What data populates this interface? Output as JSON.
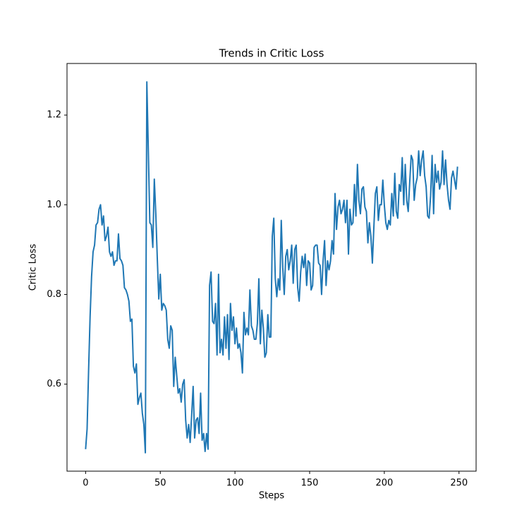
{
  "chart_data": {
    "type": "line",
    "title": "Trends in Critic Loss",
    "x_label": "Steps",
    "y_label": "Critic Loss",
    "color": "#1f77b4",
    "x": [
      0,
      1,
      2,
      3,
      4,
      5,
      6,
      7,
      8,
      9,
      10,
      11,
      12,
      13,
      14,
      15,
      16,
      17,
      18,
      19,
      20,
      21,
      22,
      23,
      24,
      25,
      26,
      27,
      28,
      29,
      30,
      31,
      32,
      33,
      34,
      35,
      36,
      37,
      38,
      39,
      40,
      41,
      42,
      43,
      44,
      45,
      46,
      47,
      48,
      49,
      50,
      51,
      52,
      53,
      54,
      55,
      56,
      57,
      58,
      59,
      60,
      61,
      62,
      63,
      64,
      65,
      66,
      67,
      68,
      69,
      70,
      71,
      72,
      73,
      74,
      75,
      76,
      77,
      78,
      79,
      80,
      81,
      82,
      83,
      84,
      85,
      86,
      87,
      88,
      89,
      90,
      91,
      92,
      93,
      94,
      95,
      96,
      97,
      98,
      99,
      100,
      101,
      102,
      103,
      104,
      105,
      106,
      107,
      108,
      109,
      110,
      111,
      112,
      113,
      114,
      115,
      116,
      117,
      118,
      119,
      120,
      121,
      122,
      123,
      124,
      125,
      126,
      127,
      128,
      129,
      130,
      131,
      132,
      133,
      134,
      135,
      136,
      137,
      138,
      139,
      140,
      141,
      142,
      143,
      144,
      145,
      146,
      147,
      148,
      149,
      150,
      151,
      152,
      153,
      154,
      155,
      156,
      157,
      158,
      159,
      160,
      161,
      162,
      163,
      164,
      165,
      166,
      167,
      168,
      169,
      170,
      171,
      172,
      173,
      174,
      175,
      176,
      177,
      178,
      179,
      180,
      181,
      182,
      183,
      184,
      185,
      186,
      187,
      188,
      189,
      190,
      191,
      192,
      193,
      194,
      195,
      196,
      197,
      198,
      199,
      200,
      201,
      202,
      203,
      204,
      205,
      206,
      207,
      208,
      209,
      210,
      211,
      212,
      213,
      214,
      215,
      216,
      217,
      218,
      219,
      220,
      221,
      222,
      223,
      224,
      225,
      226,
      227,
      228,
      229,
      230,
      231,
      232,
      233,
      234,
      235,
      236,
      237,
      238,
      239,
      240,
      241,
      242,
      243,
      244,
      245,
      246,
      247,
      248,
      249
    ],
    "values": [
      0.455,
      0.5,
      0.63,
      0.75,
      0.84,
      0.895,
      0.91,
      0.955,
      0.96,
      0.99,
      1.0,
      0.955,
      0.975,
      0.92,
      0.93,
      0.95,
      0.895,
      0.885,
      0.895,
      0.865,
      0.875,
      0.875,
      0.935,
      0.88,
      0.875,
      0.865,
      0.815,
      0.81,
      0.8,
      0.785,
      0.74,
      0.745,
      0.64,
      0.625,
      0.645,
      0.555,
      0.57,
      0.58,
      0.535,
      0.51,
      0.447,
      1.274,
      1.12,
      0.96,
      0.955,
      0.905,
      1.057,
      0.98,
      0.88,
      0.79,
      0.845,
      0.765,
      0.78,
      0.775,
      0.765,
      0.7,
      0.68,
      0.73,
      0.72,
      0.595,
      0.66,
      0.62,
      0.58,
      0.59,
      0.56,
      0.6,
      0.61,
      0.52,
      0.48,
      0.51,
      0.47,
      0.53,
      0.595,
      0.48,
      0.52,
      0.525,
      0.49,
      0.58,
      0.475,
      0.49,
      0.45,
      0.49,
      0.455,
      0.82,
      0.85,
      0.74,
      0.735,
      0.78,
      0.665,
      0.845,
      0.67,
      0.7,
      0.665,
      0.75,
      0.68,
      0.755,
      0.655,
      0.78,
      0.72,
      0.75,
      0.69,
      0.725,
      0.68,
      0.69,
      0.67,
      0.625,
      0.76,
      0.71,
      0.725,
      0.71,
      0.81,
      0.73,
      0.72,
      0.7,
      0.7,
      0.735,
      0.835,
      0.69,
      0.765,
      0.725,
      0.66,
      0.67,
      0.755,
      0.705,
      0.705,
      0.93,
      0.97,
      0.835,
      0.795,
      0.835,
      0.81,
      0.965,
      0.86,
      0.8,
      0.885,
      0.9,
      0.855,
      0.875,
      0.91,
      0.825,
      0.9,
      0.91,
      0.815,
      0.785,
      0.85,
      0.885,
      0.86,
      0.89,
      0.82,
      0.875,
      0.87,
      0.81,
      0.82,
      0.905,
      0.91,
      0.91,
      0.87,
      0.865,
      0.8,
      0.875,
      0.92,
      0.82,
      0.875,
      0.855,
      0.875,
      0.92,
      0.89,
      1.025,
      0.945,
      0.995,
      1.01,
      0.98,
      0.99,
      1.01,
      0.96,
      1.01,
      0.89,
      0.99,
      0.955,
      0.96,
      1.045,
      0.975,
      1.09,
      1.01,
      0.98,
      1.035,
      1.04,
      0.995,
      0.985,
      0.915,
      0.96,
      0.93,
      0.87,
      0.95,
      1.025,
      1.04,
      0.965,
      1.0,
      1.0,
      1.055,
      1.0,
      0.96,
      0.945,
      0.965,
      0.955,
      1.025,
      0.975,
      1.07,
      0.985,
      0.97,
      1.045,
      1.03,
      1.105,
      1.0,
      1.09,
      1.01,
      0.985,
      1.05,
      1.11,
      1.1,
      1.01,
      1.045,
      1.06,
      1.12,
      1.065,
      1.1,
      1.12,
      1.065,
      1.04,
      0.975,
      0.97,
      1.02,
      1.11,
      0.98,
      1.09,
      1.05,
      1.075,
      1.035,
      1.05,
      1.12,
      1.045,
      1.1,
      1.045,
      1.01,
      0.99,
      1.06,
      1.075,
      1.055,
      1.035,
      1.085
    ],
    "xlim": [
      -12.45,
      261.45
    ],
    "xticks": [
      0,
      50,
      100,
      150,
      200,
      250
    ],
    "ylim": [
      0.406,
      1.315
    ],
    "yticks": [
      0.6,
      0.8,
      {
        "value": 1,
        "label": "1.0"
      },
      1.2
    ],
    "grid": false
  }
}
